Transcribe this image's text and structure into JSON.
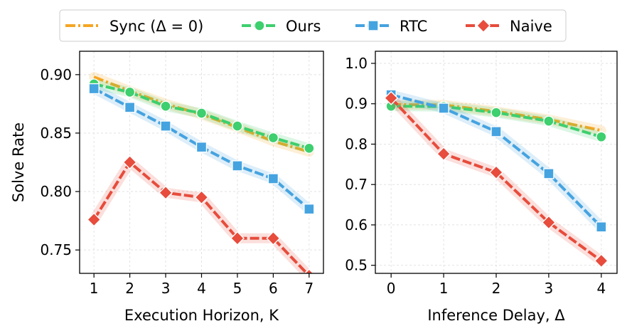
{
  "legend": {
    "items": [
      {
        "label": "Sync (Δ = 0)",
        "color": "#f5a623",
        "marker": "none",
        "dash": "dashdot"
      },
      {
        "label": "Ours",
        "color": "#3ecf6e",
        "marker": "circle",
        "dash": "dashed"
      },
      {
        "label": "RTC",
        "color": "#45a3e0",
        "marker": "square",
        "dash": "dashed"
      },
      {
        "label": "Naive",
        "color": "#e74c3c",
        "marker": "diamond",
        "dash": "dashed"
      }
    ]
  },
  "chart_data": [
    {
      "type": "line",
      "xlabel": "Execution Horizon, K",
      "ylabel": "Solve Rate",
      "xlim": [
        0.6,
        7.4
      ],
      "ylim": [
        0.73,
        0.92
      ],
      "xticks": [
        1,
        2,
        3,
        4,
        5,
        6,
        7
      ],
      "yticks": [
        0.75,
        0.8,
        0.85,
        0.9
      ],
      "ytick_labels": [
        "0.75",
        "0.80",
        "0.85",
        "0.90"
      ],
      "grid": true,
      "x": [
        1,
        2,
        3,
        4,
        5,
        6,
        7
      ],
      "series": [
        {
          "name": "Sync (Δ = 0)",
          "values": [
            0.898,
            0.886,
            0.875,
            0.866,
            0.855,
            0.843,
            0.834
          ]
        },
        {
          "name": "Ours",
          "values": [
            0.892,
            0.885,
            0.873,
            0.867,
            0.856,
            0.846,
            0.837
          ]
        },
        {
          "name": "RTC",
          "values": [
            0.888,
            0.872,
            0.856,
            0.838,
            0.822,
            0.811,
            0.785
          ]
        },
        {
          "name": "Naive",
          "values": [
            0.776,
            0.825,
            0.799,
            0.795,
            0.76,
            0.76,
            0.728
          ]
        }
      ]
    },
    {
      "type": "line",
      "xlabel": "Inference Delay, Δ",
      "ylabel": "",
      "xlim": [
        -0.3,
        4.3
      ],
      "ylim": [
        0.48,
        1.03
      ],
      "xticks": [
        0,
        1,
        2,
        3,
        4
      ],
      "yticks": [
        0.5,
        0.6,
        0.7,
        0.8,
        0.9,
        1.0
      ],
      "ytick_labels": [
        "0.5",
        "0.6",
        "0.7",
        "0.8",
        "0.9",
        "1.0"
      ],
      "grid": true,
      "x": [
        0,
        1,
        2,
        3,
        4
      ],
      "series": [
        {
          "name": "Sync (Δ = 0)",
          "values": [
            0.898,
            0.897,
            0.881,
            0.861,
            0.834
          ]
        },
        {
          "name": "Ours",
          "values": [
            0.894,
            0.893,
            0.878,
            0.857,
            0.818
          ]
        },
        {
          "name": "RTC",
          "values": [
            0.922,
            0.889,
            0.831,
            0.727,
            0.595
          ]
        },
        {
          "name": "Naive",
          "values": [
            0.914,
            0.776,
            0.73,
            0.606,
            0.511
          ]
        }
      ]
    }
  ]
}
